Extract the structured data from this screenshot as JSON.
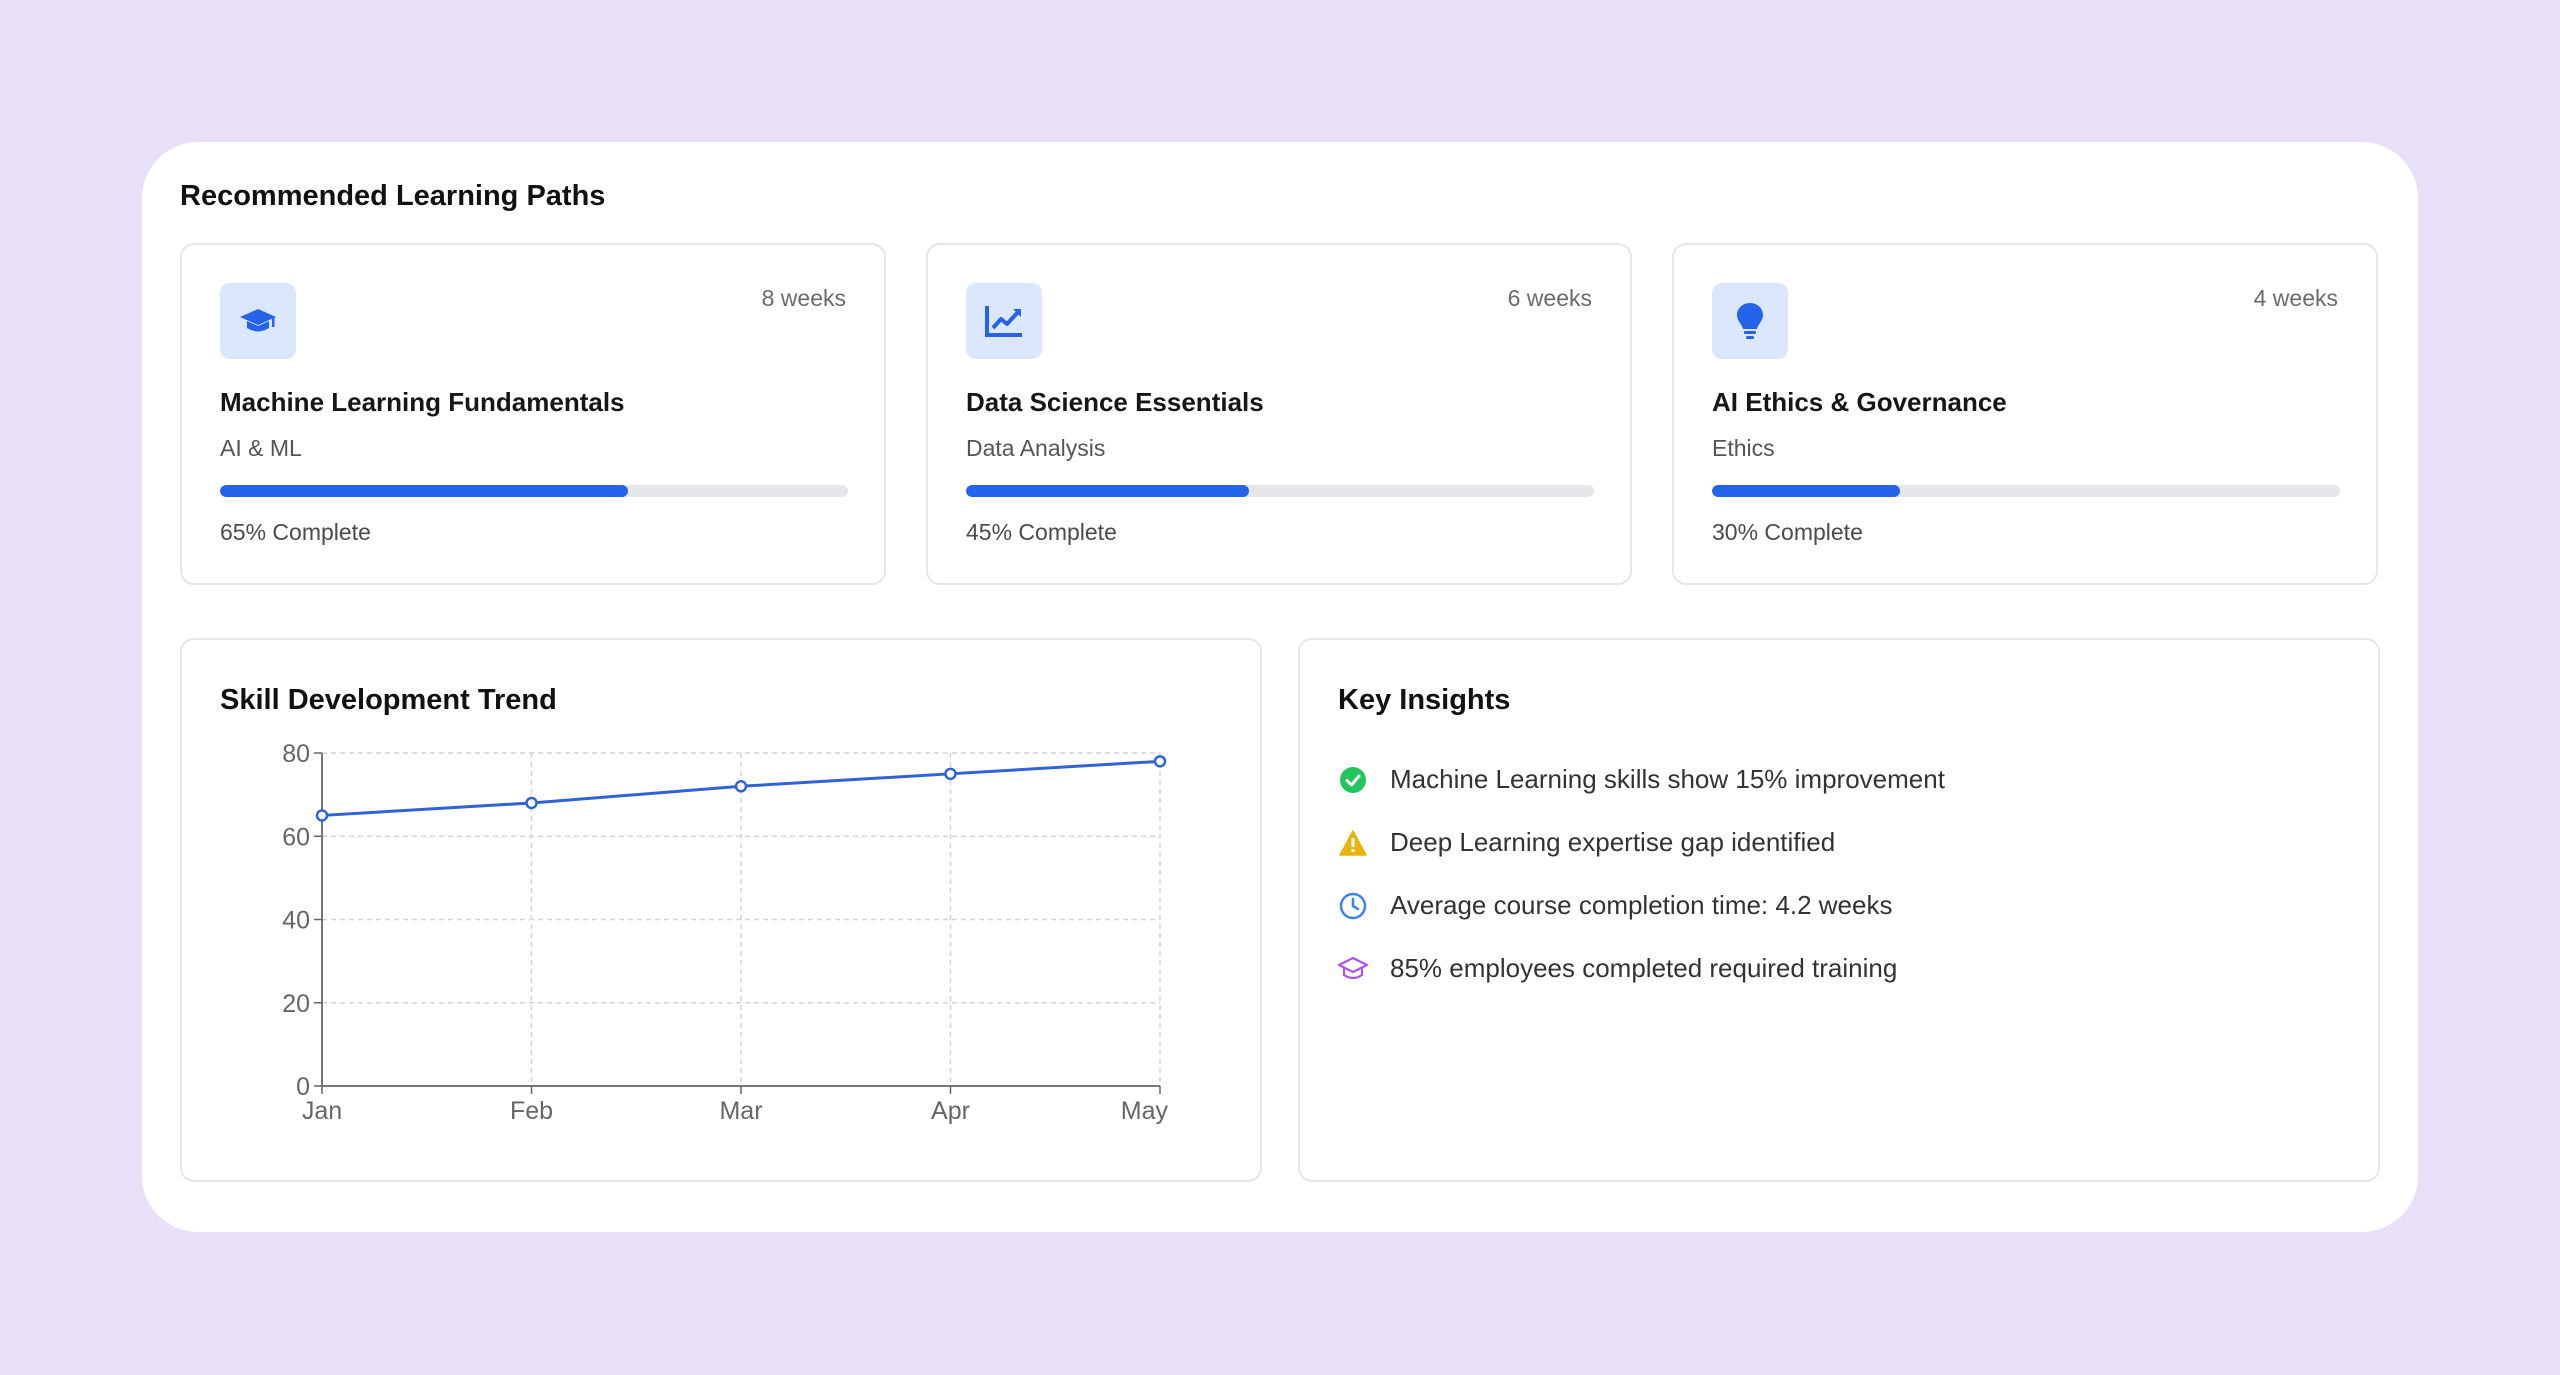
{
  "section_title": "Recommended Learning Paths",
  "paths": [
    {
      "title": "Machine Learning Fundamentals",
      "category": "AI & ML",
      "duration": "8 weeks",
      "progress": 65,
      "progress_label": "65% Complete",
      "icon": "graduation-cap-icon"
    },
    {
      "title": "Data Science Essentials",
      "category": "Data Analysis",
      "duration": "6 weeks",
      "progress": 45,
      "progress_label": "45% Complete",
      "icon": "chart-line-icon"
    },
    {
      "title": "AI Ethics & Governance",
      "category": "Ethics",
      "duration": "4 weeks",
      "progress": 30,
      "progress_label": "30% Complete",
      "icon": "lightbulb-icon"
    }
  ],
  "trend": {
    "title": "Skill Development Trend"
  },
  "chart_data": {
    "type": "line",
    "categories": [
      "Jan",
      "Feb",
      "Mar",
      "Apr",
      "May"
    ],
    "series": [
      {
        "values": [
          65,
          68,
          72,
          75,
          78
        ]
      }
    ],
    "ylim": [
      0,
      80
    ],
    "yticks": [
      0,
      20,
      40,
      60,
      80
    ],
    "grid": true,
    "line_color": "#2f63d6"
  },
  "insights": {
    "title": "Key Insights",
    "items": [
      {
        "text": "Machine Learning skills show 15% improvement",
        "icon": "check-circle-icon",
        "color": "#22c55e"
      },
      {
        "text": "Deep Learning expertise gap identified",
        "icon": "warning-icon",
        "color": "#eab308"
      },
      {
        "text": "Average course completion time: 4.2 weeks",
        "icon": "clock-icon",
        "color": "#3b82f6"
      },
      {
        "text": "85% employees completed required training",
        "icon": "graduation-cap-icon",
        "color": "#a855f7"
      }
    ]
  },
  "colors": {
    "background": "#e7e0f8",
    "accent": "#2563eb",
    "icon_tile": "#dbe7fd"
  }
}
